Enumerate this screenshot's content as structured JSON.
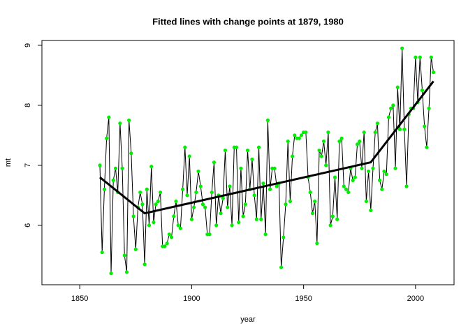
{
  "chart_data": {
    "type": "line",
    "title": "Fitted lines with change points at 1879, 1980",
    "x_label": "year",
    "y_label": "mt",
    "xlim": [
      1833.1,
      2017.2
    ],
    "ylim": [
      5.01,
      9.08
    ],
    "xticks": [
      1850,
      1900,
      1950,
      2000
    ],
    "yticks": [
      6,
      7,
      8,
      9
    ],
    "grid": false,
    "x": [
      1859,
      1860,
      1861,
      1862,
      1863,
      1864,
      1865,
      1866,
      1867,
      1868,
      1869,
      1870,
      1871,
      1872,
      1873,
      1874,
      1875,
      1876,
      1877,
      1878,
      1879,
      1880,
      1881,
      1882,
      1883,
      1884,
      1885,
      1886,
      1887,
      1888,
      1889,
      1890,
      1891,
      1892,
      1893,
      1894,
      1895,
      1896,
      1897,
      1898,
      1899,
      1900,
      1901,
      1902,
      1903,
      1904,
      1905,
      1906,
      1907,
      1908,
      1909,
      1910,
      1911,
      1912,
      1913,
      1914,
      1915,
      1916,
      1917,
      1918,
      1919,
      1920,
      1921,
      1922,
      1923,
      1924,
      1925,
      1926,
      1927,
      1928,
      1929,
      1930,
      1931,
      1932,
      1933,
      1934,
      1935,
      1936,
      1937,
      1938,
      1939,
      1940,
      1941,
      1942,
      1943,
      1944,
      1945,
      1946,
      1947,
      1948,
      1949,
      1950,
      1951,
      1952,
      1953,
      1954,
      1955,
      1956,
      1957,
      1958,
      1959,
      1960,
      1961,
      1962,
      1963,
      1964,
      1965,
      1966,
      1967,
      1968,
      1969,
      1970,
      1971,
      1972,
      1973,
      1974,
      1975,
      1976,
      1977,
      1978,
      1979,
      1980,
      1981,
      1982,
      1983,
      1984,
      1985,
      1986,
      1987,
      1988,
      1989,
      1990,
      1991,
      1992,
      1993,
      1994,
      1995,
      1996,
      1997,
      1998,
      1999,
      2000,
      2001,
      2002,
      2003,
      2004,
      2005,
      2006,
      2007,
      2008
    ],
    "series": [
      {
        "color": "#00ee00",
        "line_color": "#000000",
        "values": [
          7.0,
          5.55,
          6.6,
          7.45,
          7.8,
          5.2,
          6.75,
          6.95,
          6.55,
          7.7,
          6.95,
          5.5,
          5.22,
          7.75,
          7.2,
          6.15,
          5.6,
          6.3,
          6.55,
          6.35,
          5.35,
          6.6,
          6.0,
          6.98,
          6.05,
          6.35,
          6.4,
          6.55,
          5.65,
          5.65,
          5.7,
          5.85,
          5.8,
          6.15,
          6.4,
          6.0,
          5.95,
          6.6,
          7.3,
          6.5,
          7.15,
          6.1,
          6.3,
          6.55,
          6.9,
          6.65,
          6.35,
          6.3,
          5.85,
          5.85,
          6.55,
          7.05,
          6.0,
          6.5,
          6.2,
          6.45,
          7.25,
          6.3,
          6.65,
          6.0,
          7.3,
          7.3,
          6.05,
          6.95,
          6.15,
          6.35,
          7.25,
          6.6,
          7.1,
          6.5,
          6.1,
          7.3,
          6.1,
          6.7,
          5.85,
          7.75,
          6.6,
          6.95,
          6.95,
          6.65,
          6.7,
          5.3,
          5.8,
          6.35,
          7.4,
          6.4,
          7.15,
          7.5,
          7.45,
          7.45,
          7.5,
          7.55,
          7.55,
          6.8,
          6.55,
          6.2,
          6.4,
          5.7,
          7.25,
          7.15,
          7.4,
          7.0,
          7.55,
          6.0,
          6.15,
          6.8,
          6.1,
          7.4,
          7.45,
          6.65,
          6.6,
          6.55,
          6.95,
          6.75,
          6.8,
          7.35,
          7.4,
          6.95,
          7.55,
          6.4,
          6.9,
          6.25,
          6.95,
          7.55,
          7.7,
          6.75,
          6.6,
          6.9,
          6.85,
          7.8,
          7.95,
          8.0,
          6.95,
          8.3,
          7.6,
          8.95,
          7.6,
          6.65,
          7.85,
          7.95,
          7.95,
          8.8,
          8.05,
          8.8,
          8.25,
          7.65,
          7.3,
          7.95,
          8.8,
          8.55
        ]
      },
      {
        "color": "#000000",
        "x": [
          1859,
          1879,
          1980,
          2008
        ],
        "values": [
          6.8,
          6.2,
          7.05,
          8.4
        ]
      }
    ]
  }
}
